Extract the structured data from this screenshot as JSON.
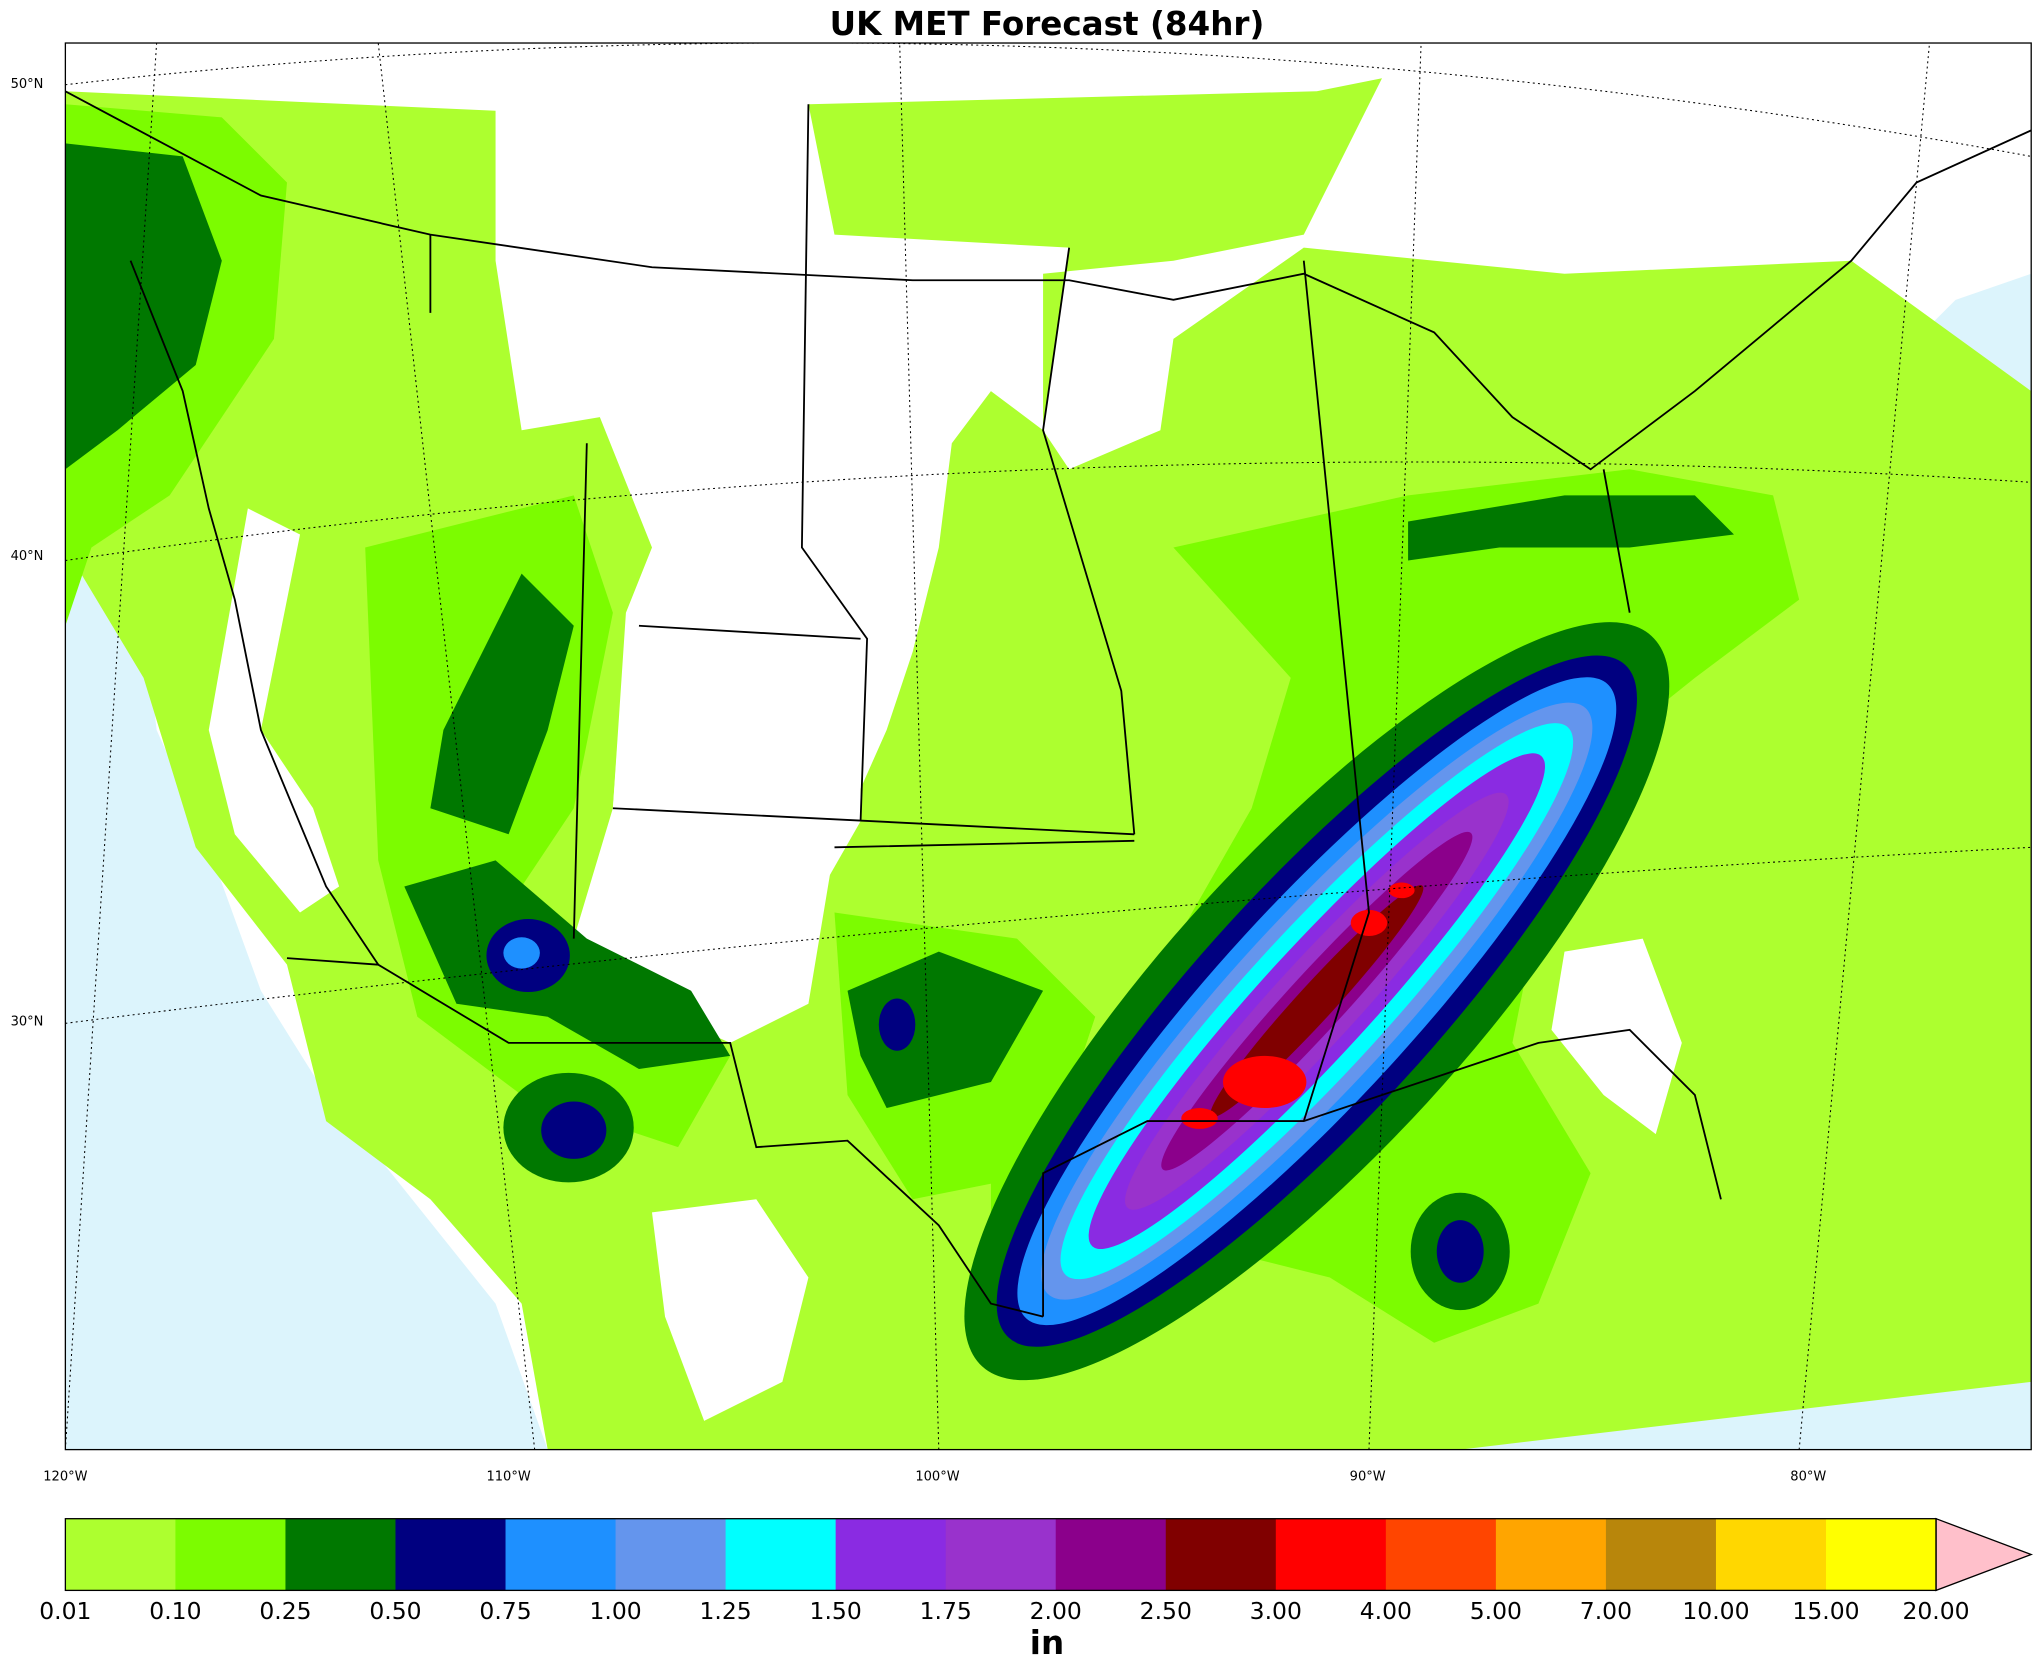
{
  "title": "UK MET Forecast (84hr)",
  "latitude_labels": [
    "50°N",
    "40°N",
    "30°N"
  ],
  "longitude_labels": [
    "120°W",
    "110°W",
    "100°W",
    "90°W",
    "80°W"
  ],
  "colorbar": {
    "levels": [
      "0.01",
      "0.10",
      "0.25",
      "0.50",
      "0.75",
      "1.00",
      "1.25",
      "1.50",
      "1.75",
      "2.00",
      "2.50",
      "3.00",
      "4.00",
      "5.00",
      "7.00",
      "10.00",
      "15.00",
      "20.00"
    ],
    "colors": [
      "#adff2f",
      "#7cfc00",
      "#007800",
      "#000080",
      "#1e90ff",
      "#6495ed",
      "#00ffff",
      "#8a2be2",
      "#9932cc",
      "#8b008b",
      "#800000",
      "#ff0000",
      "#ff4500",
      "#ffa500",
      "#b8860b",
      "#ffd700",
      "#ffff00"
    ],
    "extend_color": "#ffc0cb",
    "unit": "in"
  }
}
